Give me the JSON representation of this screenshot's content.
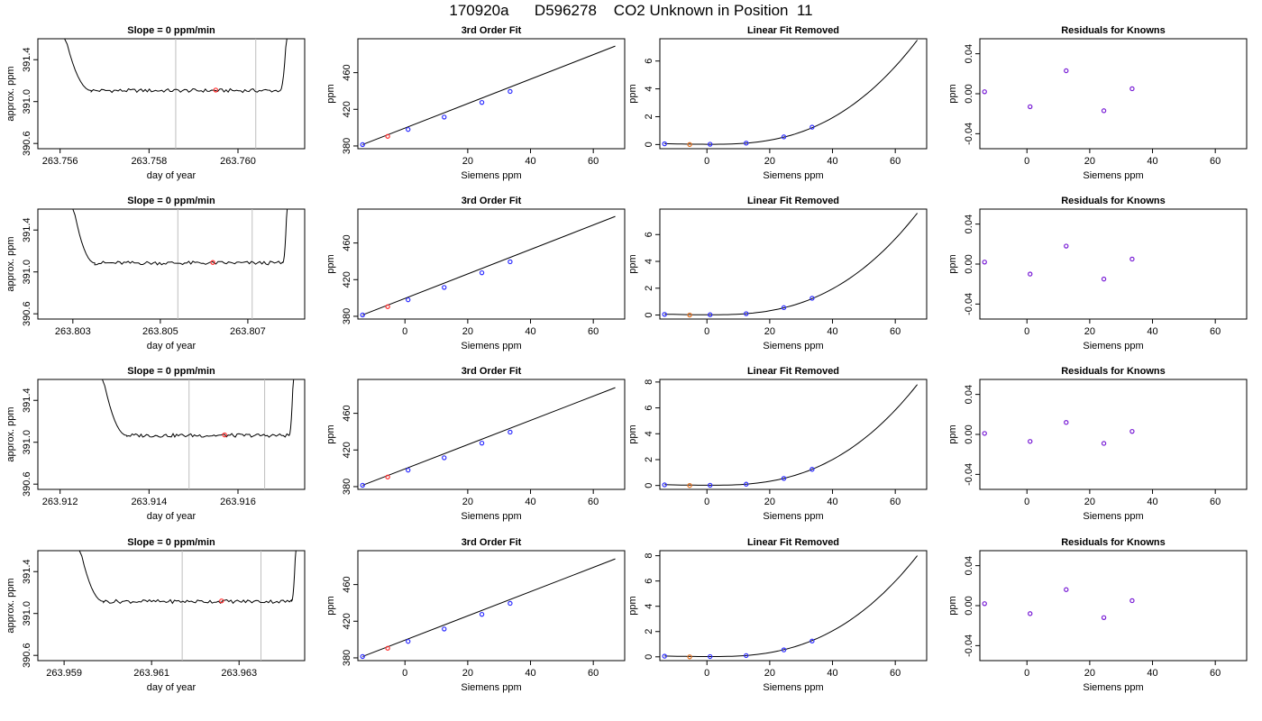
{
  "page": {
    "title": "170920a      D596278    CO2 Unknown in Position  11"
  },
  "colors": {
    "known_point": "#3030ff",
    "residual_point": "#7a1fd6",
    "unknown_point": "#ff3030",
    "unknown_point_lf": "#e07020",
    "window_line": "#bebebe",
    "curve": "#000000"
  },
  "rows": [
    {
      "timeseries": {
        "title": "Slope =  0  ppm/min",
        "xlabel": "day of year",
        "ylabel": "approx. ppm",
        "xticks": [
          "263.756",
          "263.758",
          "263.760"
        ],
        "yticks": [
          "390.6",
          "391.0",
          "391.4"
        ],
        "xlim": [
          263.7555,
          263.7615
        ],
        "ylim": [
          390.55,
          391.6
        ],
        "window": [
          263.7586,
          263.7604
        ],
        "marker": [
          263.7595,
          391.11
        ],
        "x_start": 263.7567,
        "x_end": 263.7609,
        "spike_left": [
          263.7561,
          263.7567
        ],
        "spike_right": [
          263.76095,
          263.7611
        ]
      },
      "fit": {
        "title": "3rd Order Fit",
        "xlabel": "Siemens ppm",
        "ylabel": "ppm",
        "xticks": [
          "20",
          "40",
          "60"
        ],
        "yticks": [
          "380",
          "420",
          "460"
        ],
        "xlim": [
          -15,
          70
        ],
        "ylim": [
          377,
          497
        ],
        "knowns": [
          [
            -13.5,
            381.5
          ],
          [
            1,
            398
          ],
          [
            12.5,
            411.5
          ],
          [
            24.5,
            427.5
          ],
          [
            33.5,
            439.5
          ]
        ],
        "unknown": [
          -5.5,
          390.5
        ],
        "curve_end": [
          67,
          489
        ]
      },
      "linear_removed": {
        "title": "Linear Fit Removed",
        "xlabel": "Siemens ppm",
        "ylabel": "ppm",
        "xticks": [
          "0",
          "20",
          "40",
          "60"
        ],
        "yticks": [
          "0",
          "2",
          "4",
          "6"
        ],
        "xlim": [
          -15,
          70
        ],
        "ylim": [
          -0.3,
          7.6
        ],
        "knowns": [
          [
            -13.5,
            0.05
          ],
          [
            1,
            0.02
          ],
          [
            12.5,
            0.1
          ],
          [
            24.5,
            0.55
          ],
          [
            33.5,
            1.25
          ]
        ],
        "unknown": [
          -5.5,
          0.0
        ],
        "curve_end": [
          67,
          7.5
        ]
      },
      "residuals": {
        "title": "Residuals for Knowns",
        "xlabel": "Siemens ppm",
        "ylabel": "ppm",
        "xticks": [
          "0",
          "20",
          "40",
          "60"
        ],
        "yticks": [
          "-0.04",
          "0.00",
          "0.04"
        ],
        "xlim": [
          -15,
          70
        ],
        "ylim": [
          -0.055,
          0.055
        ],
        "points": [
          [
            -13.5,
            0.002
          ],
          [
            1,
            -0.013
          ],
          [
            12.5,
            0.023
          ],
          [
            24.5,
            -0.017
          ],
          [
            33.5,
            0.005
          ]
        ]
      }
    },
    {
      "timeseries": {
        "title": "Slope =  0  ppm/min",
        "xlabel": "day of year",
        "ylabel": "approx. ppm",
        "xticks": [
          "263.803",
          "263.805",
          "263.807"
        ],
        "yticks": [
          "390.6",
          "391.0",
          "391.4"
        ],
        "xlim": [
          263.8022,
          263.8083
        ],
        "ylim": [
          390.55,
          391.6
        ],
        "window": [
          263.8054,
          263.8071
        ],
        "marker": [
          263.8062,
          391.09
        ],
        "x_start": 263.8035,
        "x_end": 263.8078,
        "spike_left": [
          263.803,
          263.8035
        ],
        "spike_right": [
          263.8078,
          263.8079
        ]
      },
      "fit": {
        "title": "3rd Order Fit",
        "xlabel": "Siemens ppm",
        "ylabel": "ppm",
        "xticks": [
          "0",
          "20",
          "40",
          "60"
        ],
        "yticks": [
          "380",
          "420",
          "460"
        ],
        "xlim": [
          -15,
          70
        ],
        "ylim": [
          377,
          497
        ],
        "knowns": [
          [
            -13.5,
            381.5
          ],
          [
            1,
            398
          ],
          [
            12.5,
            411.5
          ],
          [
            24.5,
            427.5
          ],
          [
            33.5,
            439.5
          ]
        ],
        "unknown": [
          -5.5,
          390.5
        ],
        "curve_end": [
          67,
          489
        ]
      },
      "linear_removed": {
        "title": "Linear Fit Removed",
        "xlabel": "Siemens ppm",
        "ylabel": "ppm",
        "xticks": [
          "0",
          "20",
          "40",
          "60"
        ],
        "yticks": [
          "0",
          "2",
          "4",
          "6"
        ],
        "xlim": [
          -15,
          70
        ],
        "ylim": [
          -0.3,
          7.9
        ],
        "knowns": [
          [
            -13.5,
            0.05
          ],
          [
            1,
            0.02
          ],
          [
            12.5,
            0.1
          ],
          [
            24.5,
            0.55
          ],
          [
            33.5,
            1.25
          ]
        ],
        "unknown": [
          -5.5,
          0.0
        ],
        "curve_end": [
          67,
          7.6
        ]
      },
      "residuals": {
        "title": "Residuals for Knowns",
        "xlabel": "Siemens ppm",
        "ylabel": "ppm",
        "xticks": [
          "0",
          "20",
          "40",
          "60"
        ],
        "yticks": [
          "-0.04",
          "0.00",
          "0.04"
        ],
        "xlim": [
          -15,
          70
        ],
        "ylim": [
          -0.055,
          0.055
        ],
        "points": [
          [
            -13.5,
            0.002
          ],
          [
            1,
            -0.01
          ],
          [
            12.5,
            0.018
          ],
          [
            24.5,
            -0.015
          ],
          [
            33.5,
            0.005
          ]
        ]
      }
    },
    {
      "timeseries": {
        "title": "Slope =  0  ppm/min",
        "xlabel": "day of year",
        "ylabel": "approx. ppm",
        "xticks": [
          "263.912",
          "263.914",
          "263.916"
        ],
        "yticks": [
          "390.6",
          "391.0",
          "391.4"
        ],
        "xlim": [
          263.9115,
          263.9175
        ],
        "ylim": [
          390.55,
          391.6
        ],
        "window": [
          263.9149,
          263.9166
        ],
        "marker": [
          263.9157,
          391.07
        ],
        "x_start": 263.9135,
        "x_end": 263.9171,
        "spike_left": [
          263.91295,
          263.9135
        ],
        "spike_right": [
          263.91715,
          263.91725
        ]
      },
      "fit": {
        "title": "3rd Order Fit",
        "xlabel": "Siemens ppm",
        "ylabel": "ppm",
        "xticks": [
          "20",
          "40",
          "60"
        ],
        "yticks": [
          "380",
          "420",
          "460"
        ],
        "xlim": [
          -15,
          70
        ],
        "ylim": [
          377,
          497
        ],
        "knowns": [
          [
            -13.5,
            381.5
          ],
          [
            1,
            398
          ],
          [
            12.5,
            411.5
          ],
          [
            24.5,
            427.5
          ],
          [
            33.5,
            439.5
          ]
        ],
        "unknown": [
          -5.5,
          390.5
        ],
        "curve_end": [
          67,
          488
        ]
      },
      "linear_removed": {
        "title": "Linear Fit Removed",
        "xlabel": "Siemens ppm",
        "ylabel": "ppm",
        "xticks": [
          "0",
          "20",
          "40",
          "60"
        ],
        "yticks": [
          "0",
          "2",
          "4",
          "6",
          "8"
        ],
        "xlim": [
          -15,
          70
        ],
        "ylim": [
          -0.3,
          8.2
        ],
        "knowns": [
          [
            -13.5,
            0.05
          ],
          [
            1,
            0.02
          ],
          [
            12.5,
            0.1
          ],
          [
            24.5,
            0.55
          ],
          [
            33.5,
            1.25
          ]
        ],
        "unknown": [
          -5.5,
          0.0
        ],
        "curve_end": [
          67,
          7.8
        ]
      },
      "residuals": {
        "title": "Residuals for Knowns",
        "xlabel": "Siemens ppm",
        "ylabel": "ppm",
        "xticks": [
          "0",
          "20",
          "40",
          "60"
        ],
        "yticks": [
          "-0.04",
          "0.00",
          "0.04"
        ],
        "xlim": [
          -15,
          70
        ],
        "ylim": [
          -0.055,
          0.055
        ],
        "points": [
          [
            -13.5,
            0.001
          ],
          [
            1,
            -0.007
          ],
          [
            12.5,
            0.012
          ],
          [
            24.5,
            -0.009
          ],
          [
            33.5,
            0.003
          ]
        ]
      }
    },
    {
      "timeseries": {
        "title": "Slope =  0  ppm/min",
        "xlabel": "day of year",
        "ylabel": "approx. ppm",
        "xticks": [
          "263.959",
          "263.961",
          "263.963"
        ],
        "yticks": [
          "390.6",
          "391.0",
          "391.4"
        ],
        "xlim": [
          263.9584,
          263.9645
        ],
        "ylim": [
          390.55,
          391.6
        ],
        "window": [
          263.9617,
          263.9635
        ],
        "marker": [
          263.9626,
          391.12
        ],
        "x_start": 263.9599,
        "x_end": 263.9642,
        "spike_left": [
          263.95935,
          263.9599
        ],
        "spike_right": [
          263.9642,
          263.9643
        ]
      },
      "fit": {
        "title": "3rd Order Fit",
        "xlabel": "Siemens ppm",
        "ylabel": "ppm",
        "xticks": [
          "0",
          "20",
          "40",
          "60"
        ],
        "yticks": [
          "380",
          "420",
          "460"
        ],
        "xlim": [
          -15,
          70
        ],
        "ylim": [
          377,
          497
        ],
        "knowns": [
          [
            -13.5,
            381.5
          ],
          [
            1,
            398
          ],
          [
            12.5,
            411.5
          ],
          [
            24.5,
            427.5
          ],
          [
            33.5,
            439.5
          ]
        ],
        "unknown": [
          -5.5,
          390.5
        ],
        "curve_end": [
          67,
          488
        ]
      },
      "linear_removed": {
        "title": "Linear Fit Removed",
        "xlabel": "Siemens ppm",
        "ylabel": "ppm",
        "xticks": [
          "0",
          "20",
          "40",
          "60"
        ],
        "yticks": [
          "0",
          "2",
          "4",
          "6",
          "8"
        ],
        "xlim": [
          -15,
          70
        ],
        "ylim": [
          -0.3,
          8.4
        ],
        "knowns": [
          [
            -13.5,
            0.05
          ],
          [
            1,
            0.02
          ],
          [
            12.5,
            0.1
          ],
          [
            24.5,
            0.55
          ],
          [
            33.5,
            1.25
          ]
        ],
        "unknown": [
          -5.5,
          0.0
        ],
        "curve_end": [
          67,
          8.0
        ]
      },
      "residuals": {
        "title": "Residuals for Knowns",
        "xlabel": "Siemens ppm",
        "ylabel": "ppm",
        "xticks": [
          "0",
          "20",
          "40",
          "60"
        ],
        "yticks": [
          "-0.04",
          "0.00",
          "0.04"
        ],
        "xlim": [
          -15,
          70
        ],
        "ylim": [
          -0.055,
          0.055
        ],
        "points": [
          [
            -13.5,
            0.002
          ],
          [
            1,
            -0.008
          ],
          [
            12.5,
            0.016
          ],
          [
            24.5,
            -0.012
          ],
          [
            33.5,
            0.005
          ]
        ]
      }
    }
  ],
  "chart_data": [
    {
      "type": "line",
      "title": "Slope =  0  ppm/min",
      "xlabel": "day of year",
      "ylabel": "approx. ppm",
      "xlim": [
        263.7555,
        263.7615
      ],
      "ylim": [
        390.55,
        391.6
      ],
      "series": [
        {
          "values_note_free": true,
          "x": [
            263.7567,
            263.7609
          ],
          "y": [
            391.09,
            391.09
          ]
        }
      ]
    },
    {
      "type": "scatter",
      "title": "3rd Order Fit",
      "xlabel": "Siemens ppm",
      "ylabel": "ppm",
      "series": [
        {
          "x": [
            -13.5,
            1,
            12.5,
            24.5,
            33.5
          ],
          "y": [
            381.5,
            398,
            411.5,
            427.5,
            439.5
          ]
        }
      ]
    },
    {
      "type": "scatter",
      "title": "Linear Fit Removed",
      "xlabel": "Siemens ppm",
      "ylabel": "ppm",
      "series": [
        {
          "x": [
            -13.5,
            1,
            12.5,
            24.5,
            33.5
          ],
          "y": [
            0.05,
            0.02,
            0.1,
            0.55,
            1.25
          ]
        }
      ]
    },
    {
      "type": "scatter",
      "title": "Residuals for Knowns",
      "xlabel": "Siemens ppm",
      "ylabel": "ppm",
      "series": [
        {
          "x": [
            -13.5,
            1,
            12.5,
            24.5,
            33.5
          ],
          "y": [
            0.002,
            -0.013,
            0.023,
            -0.017,
            0.005
          ]
        }
      ]
    }
  ]
}
